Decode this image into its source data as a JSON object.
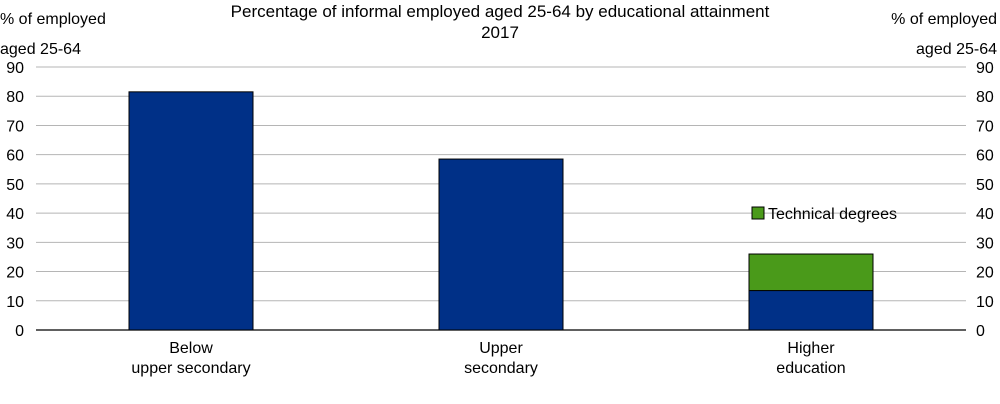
{
  "chart_data": {
    "type": "bar",
    "title": "Percentage of informal employed aged 25-64 by educational attainment",
    "subtitle": "2017",
    "ylabel_left": [
      "% of employed",
      "aged 25-64"
    ],
    "ylabel_right": [
      "% of employed",
      "aged 25-64"
    ],
    "ylim": [
      0,
      90
    ],
    "yticks": [
      0,
      10,
      20,
      30,
      40,
      50,
      60,
      70,
      80,
      90
    ],
    "grid": true,
    "categories": [
      [
        "Below",
        "upper secondary"
      ],
      [
        "Upper",
        "secondary"
      ],
      [
        "Higher",
        "education"
      ]
    ],
    "series": [
      {
        "name": "Total",
        "color": "#003087",
        "values": [
          81.5,
          58.5,
          13.5
        ],
        "in_legend": false
      },
      {
        "name": "Technical degrees",
        "color": "#4a9a1a",
        "values": [
          0,
          0,
          12.5
        ],
        "in_legend": true
      }
    ],
    "legend_position": "right-middle"
  }
}
